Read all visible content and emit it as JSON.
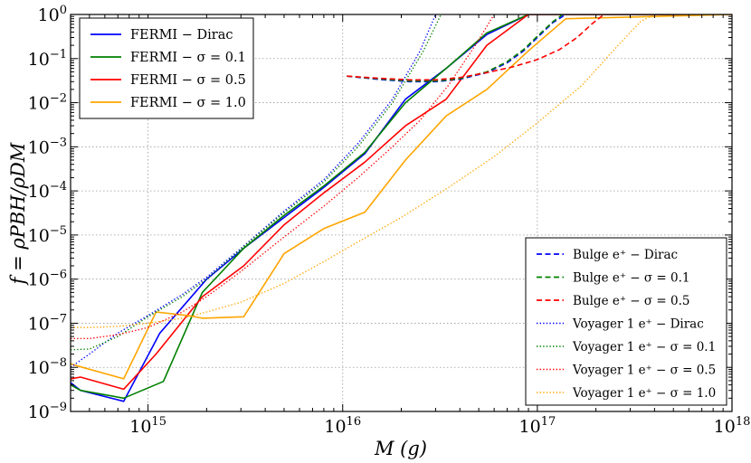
{
  "chart_data": {
    "type": "line",
    "xlabel": "M (g)",
    "ylabel": "f = ρPBH/ρDM",
    "xscale": "log",
    "yscale": "log",
    "xlim": [
      400000000000000.0,
      1e+18
    ],
    "ylim": [
      1e-09,
      1.0
    ],
    "grid": true,
    "x_ticks": [
      {
        "base": "10",
        "exp": "15",
        "value": 1000000000000000.0
      },
      {
        "base": "10",
        "exp": "16",
        "value": 1e+16
      },
      {
        "base": "10",
        "exp": "17",
        "value": 1e+17
      },
      {
        "base": "10",
        "exp": "18",
        "value": 1e+18
      }
    ],
    "y_ticks": [
      {
        "base": "10",
        "exp": "0",
        "value": 1.0
      },
      {
        "base": "10",
        "exp": "−1",
        "value": 0.1
      },
      {
        "base": "10",
        "exp": "−2",
        "value": 0.01
      },
      {
        "base": "10",
        "exp": "−3",
        "value": 0.001
      },
      {
        "base": "10",
        "exp": "−4",
        "value": 0.0001
      },
      {
        "base": "10",
        "exp": "−5",
        "value": 1e-05
      },
      {
        "base": "10",
        "exp": "−6",
        "value": 1e-06
      },
      {
        "base": "10",
        "exp": "−7",
        "value": 1e-07
      },
      {
        "base": "10",
        "exp": "−8",
        "value": 1e-08
      },
      {
        "base": "10",
        "exp": "−9",
        "value": 1e-09
      }
    ],
    "legend_left": {
      "placement": "top-left",
      "entries": [
        {
          "series": "fermi-dirac",
          "label": "FERMI − Dirac"
        },
        {
          "series": "fermi-s01",
          "label": "FERMI − σ = 0.1"
        },
        {
          "series": "fermi-s05",
          "label": "FERMI − σ = 0.5"
        },
        {
          "series": "fermi-s10",
          "label": "FERMI − σ = 1.0"
        }
      ]
    },
    "legend_right": {
      "placement": "bottom-right",
      "entries": [
        {
          "series": "bulge-dirac",
          "label": "Bulge e⁺ − Dirac"
        },
        {
          "series": "bulge-s01",
          "label": "Bulge e⁺ − σ = 0.1"
        },
        {
          "series": "bulge-s05",
          "label": "Bulge e⁺ − σ = 0.5"
        },
        {
          "series": "voyager-dirac",
          "label": "Voyager 1 e⁺ − Dirac"
        },
        {
          "series": "voyager-s01",
          "label": "Voyager 1 e⁺ − σ = 0.1"
        },
        {
          "series": "voyager-s05",
          "label": "Voyager 1 e⁺ − σ = 0.5"
        },
        {
          "series": "voyager-s10",
          "label": "Voyager 1 e⁺ − σ = 1.0"
        }
      ]
    },
    "series": [
      {
        "id": "fermi-dirac",
        "name": "FERMI − Dirac",
        "color": "#0000ff",
        "style": "solid",
        "x": [
          400000000000000.0,
          450000000000000.0,
          750000000000000.0,
          1150000000000000.0,
          2000000000000000.0,
          3100000000000000.0,
          5000000000000000.0,
          8000000000000000.0,
          1.3e+16,
          2.1e+16,
          3.4e+16,
          5.5e+16,
          9e+16,
          1e+18
        ],
        "y": [
          4.5e-09,
          3e-09,
          1.7e-09,
          6e-08,
          1e-06,
          5e-06,
          2.5e-05,
          0.00012,
          0.0007,
          0.012,
          0.06,
          0.35,
          1.0,
          1.0
        ]
      },
      {
        "id": "fermi-s01",
        "name": "FERMI − σ = 0.1",
        "color": "#008000",
        "style": "solid",
        "x": [
          400000000000000.0,
          450000000000000.0,
          750000000000000.0,
          1200000000000000.0,
          1900000000000000.0,
          3100000000000000.0,
          5000000000000000.0,
          8000000000000000.0,
          1.3e+16,
          2.1e+16,
          3.4e+16,
          5.5e+16,
          9e+16,
          1e+18
        ],
        "y": [
          4e-09,
          3e-09,
          2e-09,
          4.8e-09,
          5e-07,
          5e-06,
          2.8e-05,
          0.00013,
          0.00075,
          0.01,
          0.06,
          0.38,
          1.0,
          1.0
        ]
      },
      {
        "id": "fermi-s05",
        "name": "FERMI − σ = 0.5",
        "color": "#ff0000",
        "style": "solid",
        "x": [
          400000000000000.0,
          450000000000000.0,
          750000000000000.0,
          1100000000000000.0,
          1900000000000000.0,
          3100000000000000.0,
          5000000000000000.0,
          8000000000000000.0,
          1.3e+16,
          2.1e+16,
          3.4e+16,
          5.5e+16,
          9e+16,
          1e+18
        ],
        "y": [
          5.5e-09,
          6e-09,
          3.2e-09,
          2e-08,
          4e-07,
          2e-06,
          1.7e-05,
          9e-05,
          0.00045,
          0.003,
          0.012,
          0.2,
          1.0,
          1.0
        ]
      },
      {
        "id": "fermi-s10",
        "name": "FERMI − σ = 1.0",
        "color": "#ffa500",
        "style": "solid",
        "x": [
          400000000000000.0,
          460000000000000.0,
          750000000000000.0,
          1100000000000000.0,
          1600000000000000.0,
          1900000000000000.0,
          3100000000000000.0,
          5000000000000000.0,
          8000000000000000.0,
          1.3e+16,
          2.1e+16,
          3.4e+16,
          5.5e+16,
          9e+16,
          1.4e+17,
          1e+18
        ],
        "y": [
          1.2e-08,
          1e-08,
          5.5e-09,
          1.8e-07,
          1.5e-07,
          1.3e-07,
          1.4e-07,
          3.8e-06,
          1.4e-05,
          3.3e-05,
          0.0005,
          0.005,
          0.02,
          0.15,
          0.8,
          1.0
        ]
      },
      {
        "id": "bulge-dirac",
        "name": "Bulge e⁺ − Dirac",
        "color": "#0000ff",
        "style": "dashed",
        "x": [
          1.05e+16,
          1.5e+16,
          2.2e+16,
          3e+16,
          4e+16,
          5.5e+16,
          7e+16,
          8.5e+16,
          1e+17,
          1.2e+17,
          1.4e+17
        ],
        "y": [
          0.04,
          0.034,
          0.03,
          0.03,
          0.034,
          0.048,
          0.08,
          0.15,
          0.3,
          0.65,
          1.0
        ]
      },
      {
        "id": "bulge-s01",
        "name": "Bulge e⁺ − σ = 0.1",
        "color": "#008000",
        "style": "dashed",
        "x": [
          1.05e+16,
          1.5e+16,
          2.2e+16,
          3e+16,
          4e+16,
          5.5e+16,
          7e+16,
          8.5e+16,
          1e+17,
          1.2e+17,
          1.35e+17
        ],
        "y": [
          0.04,
          0.035,
          0.031,
          0.031,
          0.035,
          0.05,
          0.085,
          0.16,
          0.32,
          0.68,
          1.0
        ]
      },
      {
        "id": "bulge-s05",
        "name": "Bulge e⁺ − σ = 0.5",
        "color": "#ff0000",
        "style": "dashed",
        "x": [
          1.05e+16,
          1.5e+16,
          2.2e+16,
          3e+16,
          4e+16,
          5.5e+16,
          7.5e+16,
          1e+17,
          1.3e+17,
          1.6e+17,
          1.9e+17,
          2.2e+17
        ],
        "y": [
          0.04,
          0.036,
          0.033,
          0.033,
          0.037,
          0.048,
          0.065,
          0.095,
          0.16,
          0.3,
          0.6,
          1.0
        ]
      },
      {
        "id": "voyager-dirac",
        "name": "Voyager 1 e⁺ − Dirac",
        "color": "#0000ff",
        "style": "dotted",
        "x": [
          400000000000000.0,
          500000000000000.0,
          700000000000000.0,
          1000000000000000.0,
          1500000000000000.0,
          2000000000000000.0,
          3000000000000000.0,
          5000000000000000.0,
          8000000000000000.0,
          1.2e+16,
          1.8e+16,
          2.5e+16,
          3e+16
        ],
        "y": [
          1e-08,
          2e-08,
          6e-08,
          1.5e-07,
          4.5e-07,
          1.1e-06,
          5e-06,
          3.5e-05,
          0.00018,
          0.0012,
          0.012,
          0.15,
          1.0
        ]
      },
      {
        "id": "voyager-s01",
        "name": "Voyager 1 e⁺ − σ = 0.1",
        "color": "#008000",
        "style": "dotted",
        "x": [
          400000000000000.0,
          500000000000000.0,
          700000000000000.0,
          1000000000000000.0,
          1500000000000000.0,
          2000000000000000.0,
          3000000000000000.0,
          5000000000000000.0,
          8000000000000000.0,
          1.2e+16,
          1.8e+16,
          2.6e+16,
          3.2e+16
        ],
        "y": [
          2.5e-08,
          2.6e-08,
          5e-08,
          1.4e-07,
          4e-07,
          1e-06,
          4.8e-06,
          3.2e-05,
          0.00016,
          0.001,
          0.01,
          0.15,
          1.0
        ]
      },
      {
        "id": "voyager-s05",
        "name": "Voyager 1 e⁺ − σ = 0.5",
        "color": "#ff0000",
        "style": "dotted",
        "x": [
          400000000000000.0,
          500000000000000.0,
          700000000000000.0,
          1000000000000000.0,
          1500000000000000.0,
          2000000000000000.0,
          3000000000000000.0,
          5000000000000000.0,
          8000000000000000.0,
          1.2e+16,
          1.8e+16,
          2.5e+16,
          3.5e+16,
          4.8e+16,
          6e+16
        ],
        "y": [
          4.5e-08,
          4.5e-08,
          5.5e-08,
          8e-08,
          1.8e-07,
          4e-07,
          1.5e-06,
          9e-06,
          4.5e-05,
          0.0002,
          0.001,
          0.004,
          0.025,
          0.2,
          1.0
        ]
      },
      {
        "id": "voyager-s10",
        "name": "Voyager 1 e⁺ − σ = 1.0",
        "color": "#ffa500",
        "style": "dotted",
        "x": [
          400000000000000.0,
          500000000000000.0,
          700000000000000.0,
          1000000000000000.0,
          1500000000000000.0,
          2000000000000000.0,
          3000000000000000.0,
          5000000000000000.0,
          8000000000000000.0,
          1.2e+16,
          2e+16,
          3.5e+16,
          6e+16,
          1e+17,
          1.7e+17,
          2.6e+17,
          3.4e+17,
          4e+17
        ],
        "y": [
          8e-08,
          8e-08,
          8.5e-08,
          1e-07,
          1.3e-07,
          1.8e-07,
          3e-07,
          8e-07,
          2.5e-06,
          7e-06,
          2.5e-05,
          0.00012,
          0.0006,
          0.0035,
          0.025,
          0.2,
          0.7,
          1.0
        ]
      }
    ]
  }
}
